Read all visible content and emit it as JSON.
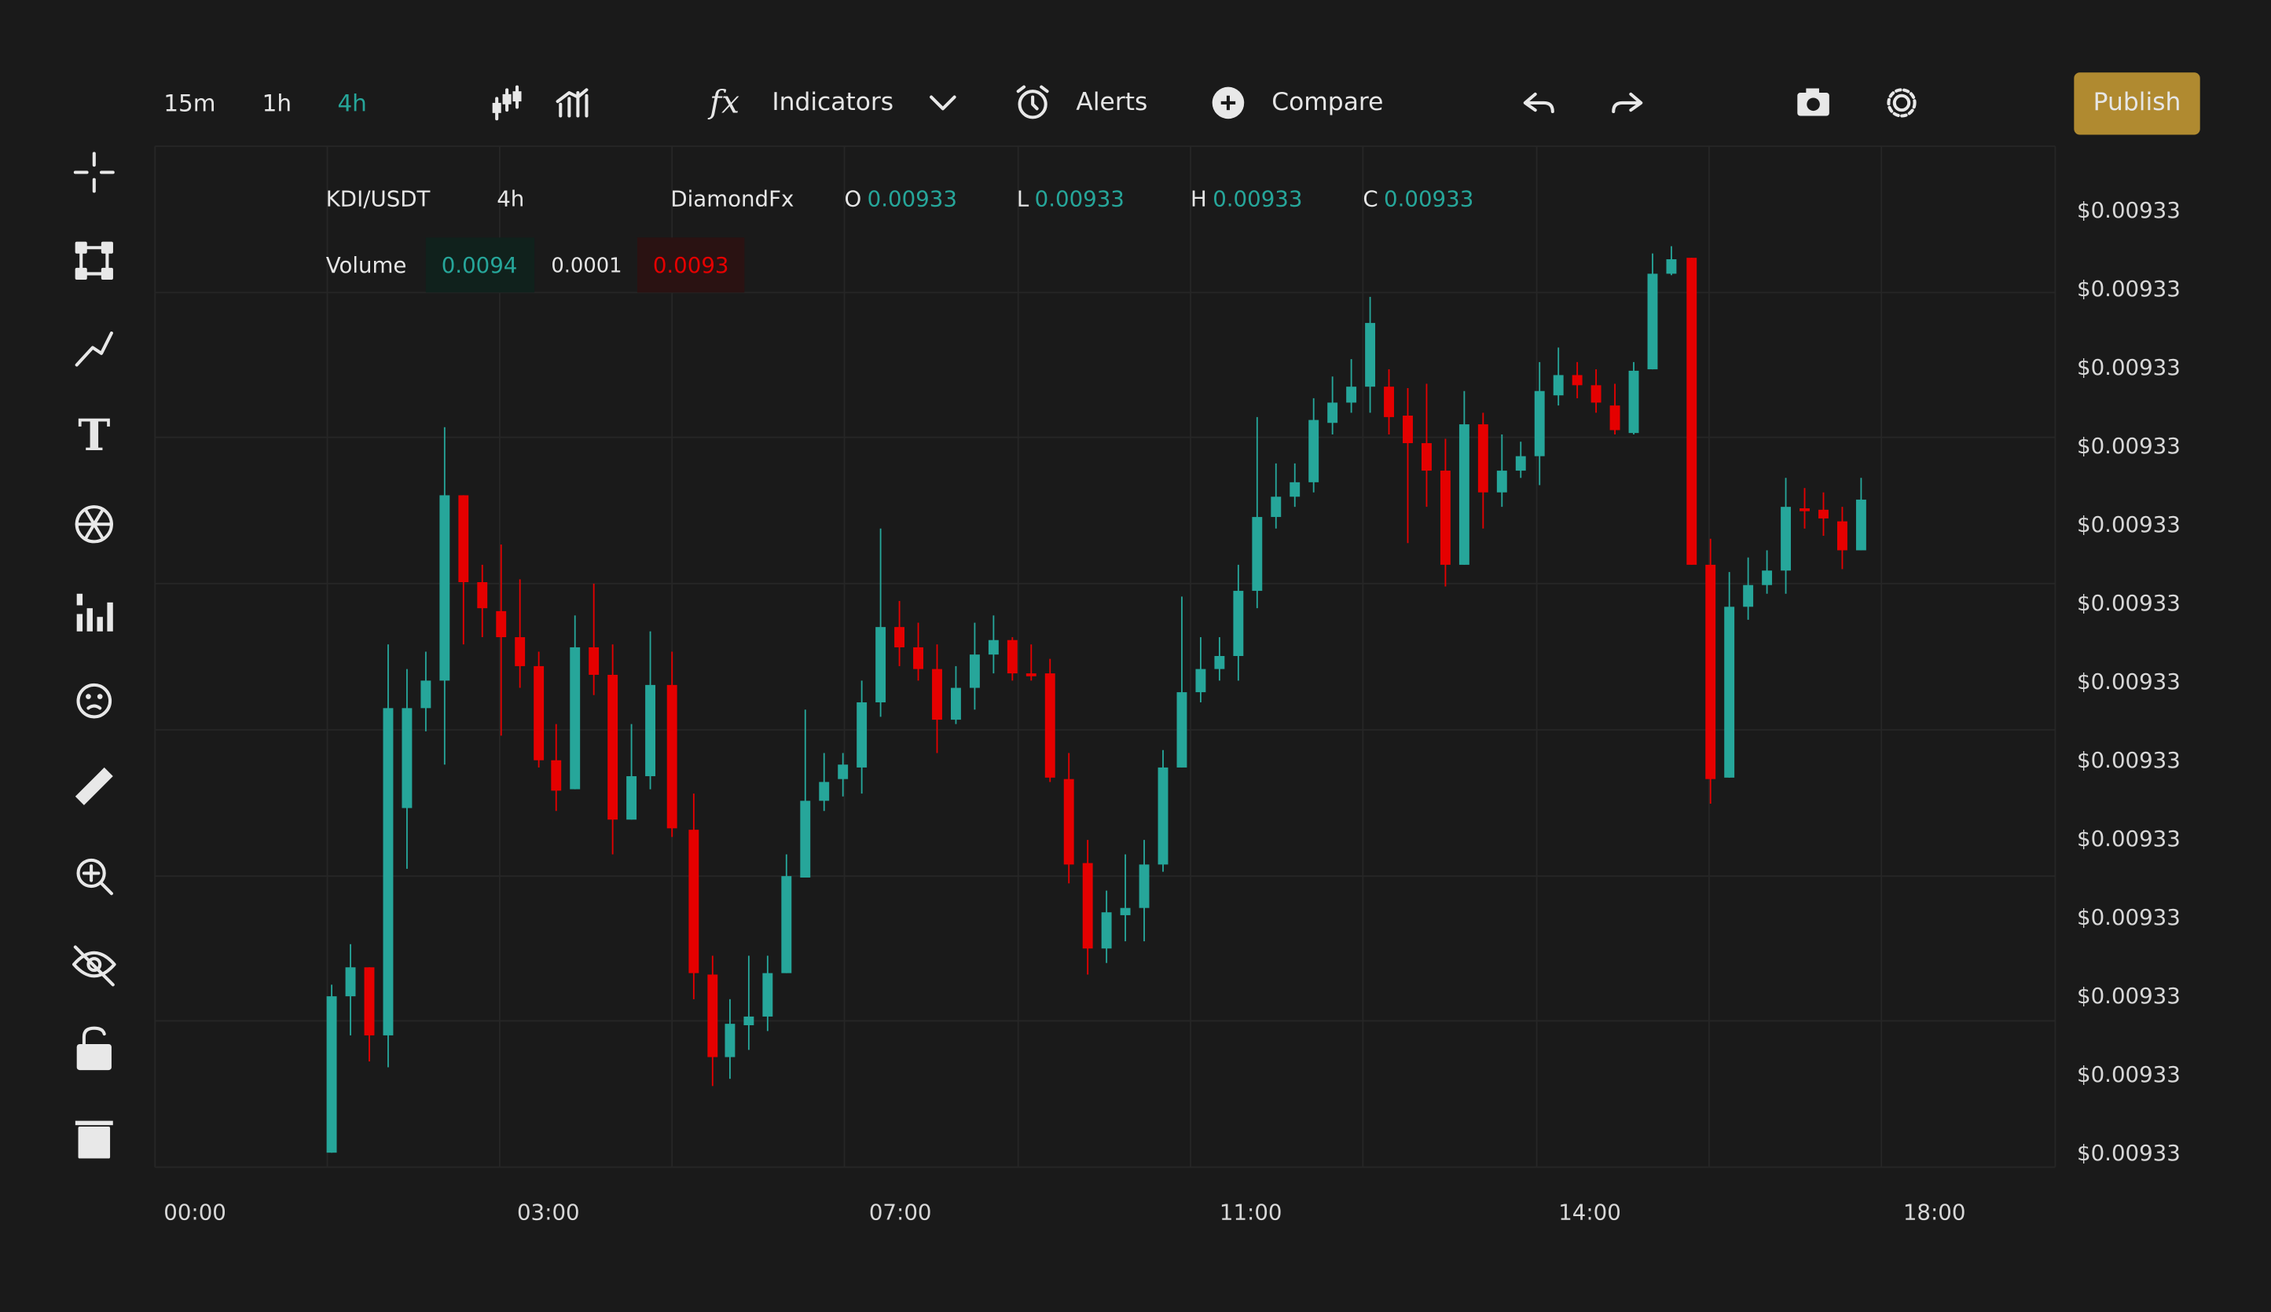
{
  "toolbar": {
    "timeframes": [
      "15m",
      "1h",
      "4h"
    ],
    "active_timeframe": "4h",
    "indicators": "Indicators",
    "alerts": "Alerts",
    "compare": "Compare",
    "publish": "Publish"
  },
  "legend": {
    "pair": "KDI/USDT",
    "interval": "4h",
    "indicator": "DiamondFx",
    "ohlc": [
      {
        "label": "O",
        "value": "0.00933"
      },
      {
        "label": "L",
        "value": "0.00933"
      },
      {
        "label": "H",
        "value": "0.00933"
      },
      {
        "label": "C",
        "value": "0.00933"
      }
    ],
    "volume": {
      "label": "Volume",
      "values": [
        "0.0094",
        "0.0001",
        "0.0093"
      ]
    }
  },
  "price_axis": {
    "labels": [
      "$0.00933",
      "$0.00933",
      "$0.00933",
      "$0.00933",
      "$0.00933",
      "$0.00933",
      "$0.00933",
      "$0.00933",
      "$0.00933",
      "$0.00933",
      "$0.00933",
      "$0.00933",
      "$0.00933"
    ]
  },
  "time_axis": {
    "labels": [
      "00:00",
      "03:00",
      "07:00",
      "11:00",
      "14:00",
      "18:00"
    ]
  }
}
